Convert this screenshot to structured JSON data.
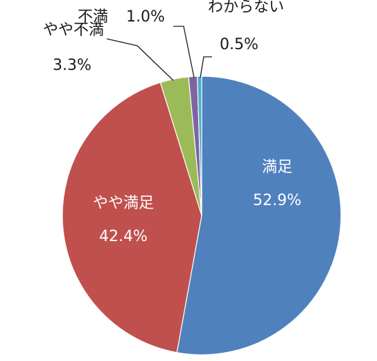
{
  "chart_data": {
    "type": "pie",
    "start_angle_deg": 0,
    "direction": "clockwise",
    "slices": [
      {
        "label": "満足",
        "value": 52.9,
        "display": "52.9%",
        "color": "#4f81bd"
      },
      {
        "label": "やや満足",
        "value": 42.4,
        "display": "42.4%",
        "color": "#c0504d"
      },
      {
        "label": "やや不満",
        "value": 3.3,
        "display": "3.3%",
        "color": "#9bbb59"
      },
      {
        "label": "不満",
        "value": 1.0,
        "display": "1.0%",
        "color": "#8064a2"
      },
      {
        "label": "わからない",
        "value": 0.5,
        "display": "0.5%",
        "color": "#4bacc6"
      }
    ]
  }
}
